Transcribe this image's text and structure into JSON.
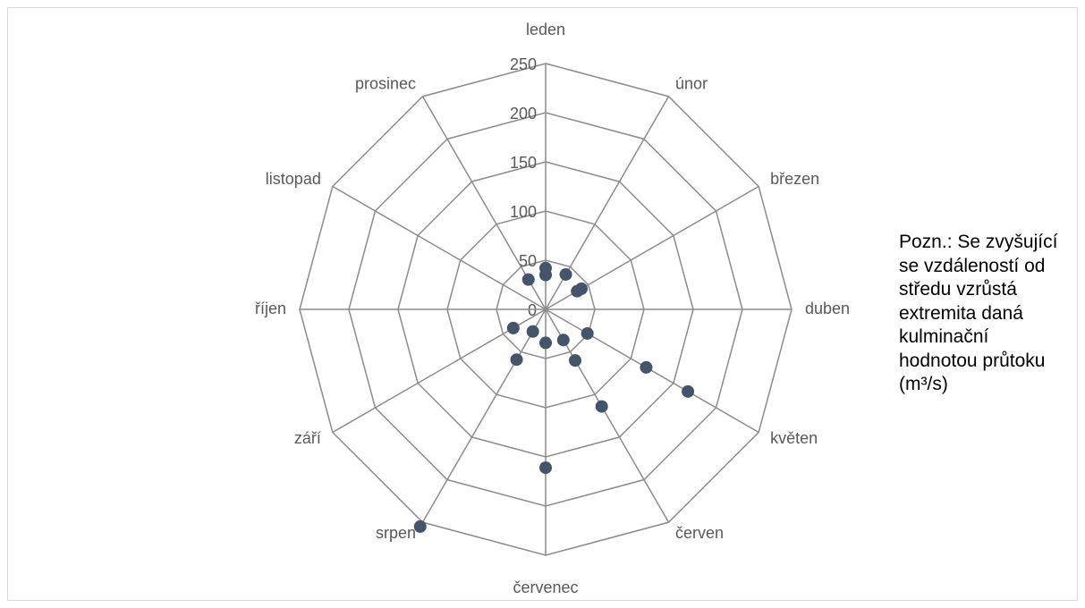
{
  "chart_data": {
    "type": "radar",
    "categories": [
      "leden",
      "únor",
      "březen",
      "duben",
      "květen",
      "červen",
      "červenec",
      "srpen",
      "září",
      "říjen",
      "listopad",
      "prosinec"
    ],
    "values": [
      [
        42,
        35
      ],
      [
        41
      ],
      [
        42,
        37
      ],
      [],
      [
        49,
        118,
        167
      ],
      [
        36,
        60,
        114
      ],
      [
        34,
        161
      ],
      [
        26,
        59,
        255
      ],
      [
        38
      ],
      [],
      [],
      [
        35
      ]
    ],
    "color": "#44546a",
    "ylim": [
      0,
      250
    ],
    "yticks": [
      0,
      50,
      100,
      150,
      200,
      250
    ],
    "grid": true,
    "annotation": "Pozn.: Se zvyšující se vzdáleností od středu vzrůstá extremita daná kulminační hodnotou průtoku (m³/s)"
  }
}
